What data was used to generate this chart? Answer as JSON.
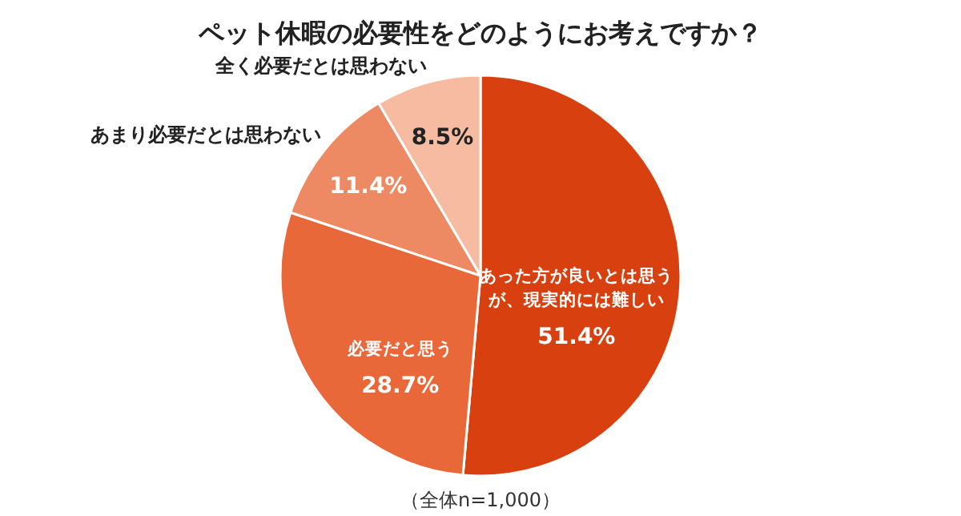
{
  "chart_data": {
    "type": "pie",
    "title": "ペット休暇の必要性をどのようにお考えですか？",
    "categories": [
      "あった方が良いとは思うが、現実的には難しい",
      "必要だと思う",
      "あまり必要だとは思わない",
      "全く必要だとは思わない"
    ],
    "values": [
      51.4,
      28.7,
      11.4,
      8.5
    ],
    "colors": [
      "#d9400f",
      "#e8683a",
      "#ee8a63",
      "#f6bba0"
    ],
    "value_labels": [
      "51.4%",
      "28.7%",
      "11.4%",
      "8.5%"
    ],
    "annotations": [
      "（全体n=1,000）"
    ]
  }
}
